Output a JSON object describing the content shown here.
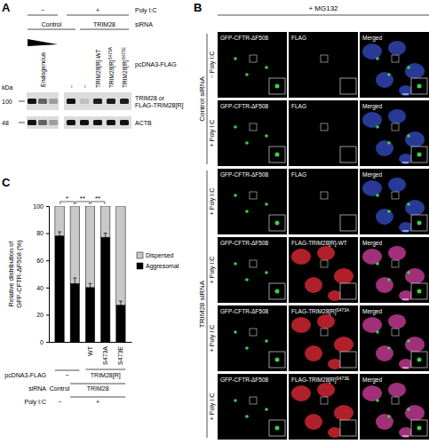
{
  "figure": {
    "panel_labels": [
      "A",
      "B",
      "C"
    ],
    "panel_a": {
      "rows": [
        {
          "label": "Poly I:C",
          "groups": [
            {
              "text": "−",
              "from": 0,
              "to": 2
            },
            {
              "text": "+",
              "from": 3,
              "to": 7
            }
          ]
        },
        {
          "label": "siRNA",
          "groups": [
            {
              "text": "Control",
              "from": 0,
              "to": 3
            },
            {
              "text": "TRIM28",
              "from": 4,
              "to": 7
            }
          ]
        }
      ],
      "plasmid_label": "pcDNA3-FLAG",
      "lane_labels": [
        null,
        null,
        null,
        {
          "text": "−"
        },
        {
          "text": "−"
        },
        {
          "text": "TRIM28[R]-WT"
        },
        {
          "text": "TRIM28[R]",
          "sup": "S473A"
        },
        {
          "text": "TRIM28[R]",
          "sup": "S473E"
        }
      ],
      "endogenous_label": "Endogenous",
      "kda_label": "kDa",
      "markers": [
        {
          "label": "100",
          "row": 0
        },
        {
          "label": "48",
          "row": 1
        }
      ],
      "blot_rows": [
        {
          "label": [
            "TRIM28 or",
            "FLAG-TRIM28[R]"
          ],
          "intensity": [
            1,
            0.6,
            0.3,
            1,
            0.15,
            0.95,
            0.95,
            0.95
          ]
        },
        {
          "label": [
            "ACTB"
          ],
          "intensity": [
            1,
            0.6,
            0.3,
            1,
            1,
            1,
            1,
            1
          ]
        }
      ]
    },
    "panel_b": {
      "treatment": "+ MG132",
      "groups": [
        {
          "label": "Control siRNA",
          "from": 0,
          "to": 1
        },
        {
          "label": "TRIM28 siRNA",
          "from": 2,
          "to": 5
        }
      ],
      "rows": [
        {
          "condition": "− Poly I:C",
          "channels": [
            {
              "text": "GFP-CFTR-ΔF508"
            },
            {
              "text": "FLAG"
            },
            {
              "text": "Merged"
            }
          ]
        },
        {
          "condition": "+ Poly I:C",
          "channels": [
            {
              "text": "GFP-CFTR-ΔF508"
            },
            {
              "text": "FLAG"
            },
            {
              "text": "Merged"
            }
          ]
        },
        {
          "condition": "+ Poly I:C",
          "channels": [
            {
              "text": "GFP-CFTR-ΔF508"
            },
            {
              "text": "FLAG"
            },
            {
              "text": "Merged"
            }
          ]
        },
        {
          "condition": "+ Poly I:C",
          "channels": [
            {
              "text": "GFP-CFTR-ΔF508"
            },
            {
              "text": "FLAG-TRIM28[R]-WT"
            },
            {
              "text": "Merged"
            }
          ]
        },
        {
          "condition": "+ Poly I:C",
          "channels": [
            {
              "text": "GFP-CFTR-ΔF508"
            },
            {
              "text": "FLAG-TRIM28[R]",
              "sup": "S473A"
            },
            {
              "text": "Merged"
            }
          ]
        },
        {
          "condition": "+ Poly I:C",
          "channels": [
            {
              "text": "GFP-CFTR-ΔF508"
            },
            {
              "text": "FLAG-TRIM28[R]",
              "sup": "S473E"
            },
            {
              "text": "Merged"
            }
          ]
        }
      ]
    }
  },
  "chart_data": {
    "type": "bar",
    "stacked": true,
    "categories": [
      null,
      null,
      null,
      null,
      null
    ],
    "y_label": [
      "Relative distribution of",
      "GFP-CFTR-ΔF508 (%)"
    ],
    "ylim": [
      0,
      100
    ],
    "yticks": [
      0,
      20,
      40,
      60,
      80,
      100
    ],
    "legend": "right",
    "series": [
      {
        "name": "Aggresomal",
        "color": "#000000",
        "values": [
          78,
          43,
          40,
          77,
          27
        ],
        "errors": [
          3,
          4,
          3,
          3,
          3
        ]
      },
      {
        "name": "Dispersed",
        "color": "#c8c8c8",
        "values": [
          22,
          57,
          60,
          23,
          73
        ]
      }
    ],
    "significance": [
      {
        "label": "*",
        "from": 0,
        "to": 1
      },
      {
        "label": "**",
        "from": 1,
        "to": 2
      },
      {
        "label": "**",
        "from": 2,
        "to": 3
      }
    ],
    "annotations": [
      {
        "label": "pcDNA3-FLAG",
        "groups": [
          {
            "text": "−",
            "from": 0,
            "to": 1
          },
          {
            "text": "TRIM28[R]",
            "from": 2,
            "to": 4,
            "items": [
              {
                "text": "WT"
              },
              {
                "text": "S473A"
              },
              {
                "text": "S473E"
              }
            ]
          }
        ]
      },
      {
        "label": "siRNA",
        "groups": [
          {
            "text": "Control",
            "from": 0,
            "to": 0
          },
          {
            "text": "TRIM28",
            "from": 1,
            "to": 4
          }
        ]
      },
      {
        "label": "Poly I:C",
        "groups": [
          {
            "text": "−",
            "from": 0,
            "to": 0
          },
          {
            "text": "+",
            "from": 1,
            "to": 4
          }
        ]
      }
    ]
  }
}
